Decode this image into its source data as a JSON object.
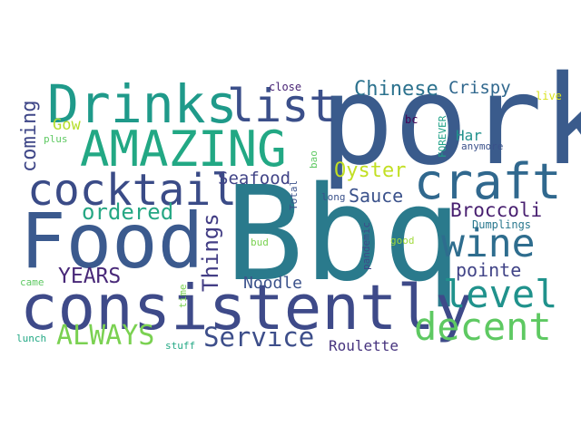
{
  "words": [
    {
      "text": "Bbq",
      "color": "#2a7a8c"
    },
    {
      "text": "pork",
      "color": "#3a5b8c"
    },
    {
      "text": "Food",
      "color": "#3b5a8e"
    },
    {
      "text": "consistently",
      "color": "#3e4a89"
    },
    {
      "text": "Drinks",
      "color": "#1f9a8a"
    },
    {
      "text": "AMAZING",
      "color": "#22a884"
    },
    {
      "text": "cocktail",
      "color": "#3a4b87"
    },
    {
      "text": "list",
      "color": "#3b4f8a"
    },
    {
      "text": "craft",
      "color": "#30688e"
    },
    {
      "text": "wine",
      "color": "#2e6d8e"
    },
    {
      "text": "level",
      "color": "#20928c"
    },
    {
      "text": "decent",
      "color": "#5ec962"
    },
    {
      "text": "ALWAYS",
      "color": "#7ad151"
    },
    {
      "text": "Service",
      "color": "#3d4e8a"
    },
    {
      "text": "Things",
      "color": "#433e85"
    },
    {
      "text": "ordered",
      "color": "#26a784"
    },
    {
      "text": "YEARS",
      "color": "#482878"
    },
    {
      "text": "Chinese",
      "color": "#2c728e"
    },
    {
      "text": "Crispy",
      "color": "#31688e"
    },
    {
      "text": "coming",
      "color": "#3f4788"
    },
    {
      "text": "Oyster",
      "color": "#c2df23"
    },
    {
      "text": "Sauce",
      "color": "#3b528b"
    },
    {
      "text": "Seafood",
      "color": "#414487"
    },
    {
      "text": "Broccoli",
      "color": "#481f70"
    },
    {
      "text": "pointe",
      "color": "#414487"
    },
    {
      "text": "Noodle",
      "color": "#3b528b"
    },
    {
      "text": "Roulette",
      "color": "#46337e"
    },
    {
      "text": "Gow",
      "color": "#b5de2b"
    },
    {
      "text": "Har",
      "color": "#21918c"
    },
    {
      "text": "close",
      "color": "#482475"
    },
    {
      "text": "live",
      "color": "#d8e219"
    },
    {
      "text": "bc",
      "color": "#440154"
    },
    {
      "text": "anymore",
      "color": "#3b528b"
    },
    {
      "text": "FOREVER",
      "color": "#1fa187"
    },
    {
      "text": "bao",
      "color": "#5ec962"
    },
    {
      "text": "Total",
      "color": "#3b528b"
    },
    {
      "text": "long",
      "color": "#3b528b"
    },
    {
      "text": "Dumplings",
      "color": "#2a788e"
    },
    {
      "text": "bud",
      "color": "#7ad151"
    },
    {
      "text": "good",
      "color": "#a0da39"
    },
    {
      "text": "pandemic",
      "color": "#3e4989"
    },
    {
      "text": "plus",
      "color": "#5ec962"
    },
    {
      "text": "came",
      "color": "#5ec962"
    },
    {
      "text": "time",
      "color": "#7ad151"
    },
    {
      "text": "lunch",
      "color": "#22a884"
    },
    {
      "text": "stuff",
      "color": "#22a884"
    }
  ]
}
